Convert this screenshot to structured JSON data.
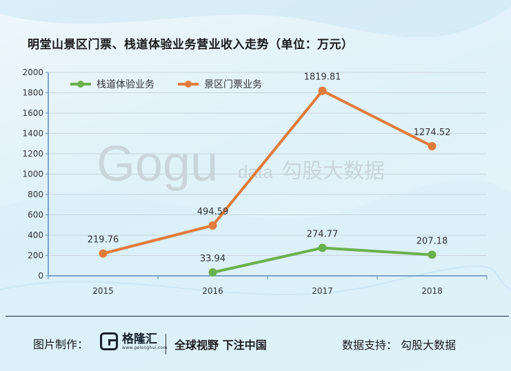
{
  "header": {
    "title": "明堂山景区门票、栈道体验业务营业收入走势（单位：万元）"
  },
  "watermark": {
    "logo_text": "Gogu",
    "logo_suffix": "data",
    "brand_cn": "勾股大数据"
  },
  "chart_data": {
    "type": "line",
    "categories": [
      "2015",
      "2016",
      "2017",
      "2018"
    ],
    "ylim": [
      0,
      2000
    ],
    "yticks": [
      0,
      200,
      400,
      600,
      800,
      1000,
      1200,
      1400,
      1600,
      1800,
      2000
    ],
    "grid": true,
    "legend_position": "top-left",
    "series": [
      {
        "name": "栈道体验业务",
        "color": "#6ab04c",
        "values": [
          null,
          33.94,
          274.77,
          207.18
        ],
        "labels": [
          "",
          "33.94",
          "274.77",
          "207.18"
        ]
      },
      {
        "name": "景区门票业务",
        "color": "#e07b39",
        "values": [
          219.76,
          494.59,
          1819.81,
          1274.52
        ],
        "labels": [
          "219.76",
          "494.59",
          "1819.81",
          "1274.52"
        ]
      }
    ]
  },
  "footer": {
    "credit_label": "图片制作：",
    "brand_name": "格隆汇",
    "brand_url": "www.gelonghui.com",
    "slogan": "全球视野 下注中国",
    "data_support": "数据支持：  勾股大数据"
  }
}
